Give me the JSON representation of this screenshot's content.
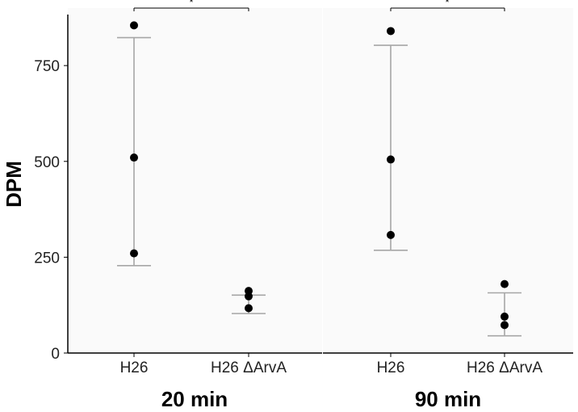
{
  "chart_data": {
    "type": "scatter",
    "ylabel": "DPM",
    "ylim": [
      0,
      900
    ],
    "yticks": [
      0,
      250,
      500,
      750
    ],
    "categories": [
      "H26",
      "H26 ΔArvA"
    ],
    "grid": false,
    "colors": {
      "point": "#000000",
      "errorbar": "#a6a6a6",
      "panel_bg": "#fafafa"
    },
    "panels": [
      {
        "title": "20 min",
        "significance": "*",
        "groups": [
          {
            "category": "H26",
            "points": [
              855,
              510,
              260
            ],
            "error_low": 228,
            "error_high": 823
          },
          {
            "category": "H26 ΔArvA",
            "points": [
              162,
              148,
              117
            ],
            "error_low": 103,
            "error_high": 151
          }
        ]
      },
      {
        "title": "90 min",
        "significance": "*",
        "groups": [
          {
            "category": "H26",
            "points": [
              840,
              505,
              308
            ],
            "error_low": 268,
            "error_high": 803
          },
          {
            "category": "H26 ΔArvA",
            "points": [
              180,
              95,
              73
            ],
            "error_low": 45,
            "error_high": 157
          }
        ]
      }
    ]
  }
}
